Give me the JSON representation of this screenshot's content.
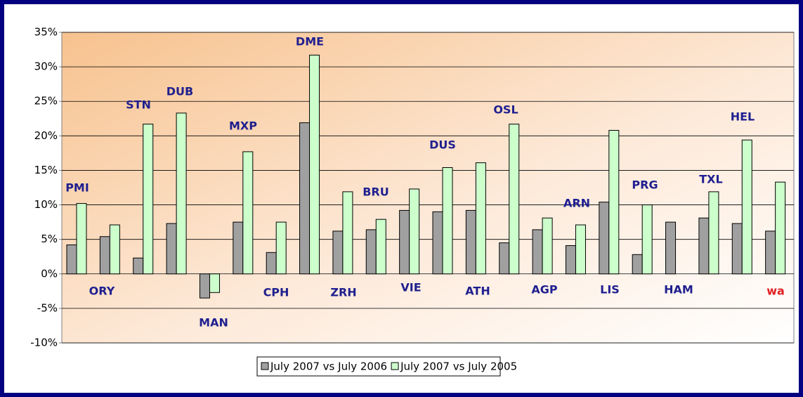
{
  "chart_data": {
    "type": "bar",
    "categories": [
      "PMI",
      "ORY",
      "STN",
      "DUB",
      "MAN",
      "MXP",
      "CPH",
      "DME",
      "ZRH",
      "BRU",
      "VIE",
      "DUS",
      "ATH",
      "OSL",
      "AGP",
      "ARN",
      "LIS",
      "PRG",
      "HAM",
      "TXL",
      "HEL",
      "wa"
    ],
    "category_label_colors": [
      "#1f1f8f",
      "#1f1f8f",
      "#1f1f8f",
      "#1f1f8f",
      "#1f1f8f",
      "#1f1f8f",
      "#1f1f8f",
      "#1f1f8f",
      "#1f1f8f",
      "#1f1f8f",
      "#1f1f8f",
      "#1f1f8f",
      "#1f1f8f",
      "#1f1f8f",
      "#1f1f8f",
      "#1f1f8f",
      "#1f1f8f",
      "#1f1f8f",
      "#1f1f8f",
      "#1f1f8f",
      "#1f1f8f",
      "#e02020"
    ],
    "series": [
      {
        "name": "July 2007 vs July 2006",
        "color": "#a0a0a0",
        "values": [
          4.2,
          5.4,
          2.3,
          7.3,
          -3.5,
          7.5,
          3.1,
          21.9,
          6.2,
          6.4,
          9.2,
          9.0,
          9.2,
          4.5,
          6.4,
          4.1,
          10.4,
          2.8,
          7.5,
          8.1,
          7.3,
          6.2
        ]
      },
      {
        "name": "July 2007 vs July 2005",
        "color": "#ccffcc",
        "values": [
          10.2,
          7.1,
          21.7,
          23.3,
          -2.7,
          17.7,
          7.5,
          31.7,
          11.9,
          7.9,
          12.3,
          15.4,
          16.1,
          21.7,
          8.1,
          7.1,
          20.8,
          10.0,
          null,
          11.9,
          19.4,
          13.3
        ]
      }
    ],
    "ylim": [
      -10,
      35
    ],
    "yticks": [
      {
        "value": -10,
        "label": "-10%"
      },
      {
        "value": -5,
        "label": "-5%"
      },
      {
        "value": 0,
        "label": "0%"
      },
      {
        "value": 5,
        "label": "5%"
      },
      {
        "value": 10,
        "label": "10%"
      },
      {
        "value": 15,
        "label": "15%"
      },
      {
        "value": 20,
        "label": "20%"
      },
      {
        "value": 25,
        "label": "25%"
      },
      {
        "value": 30,
        "label": "30%"
      },
      {
        "value": 35,
        "label": "35%"
      }
    ],
    "grid": true,
    "legend": "bottom"
  }
}
